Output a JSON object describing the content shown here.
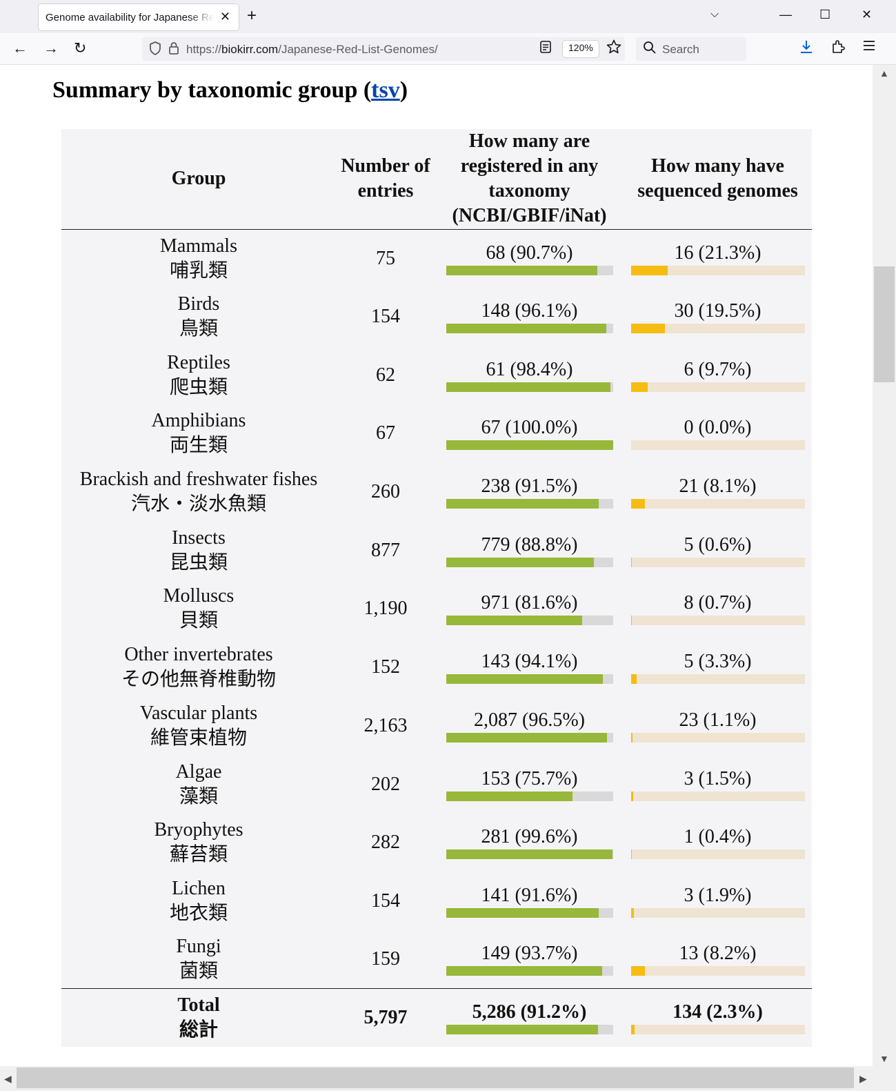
{
  "browser": {
    "tab_title": "Genome availability for Japanese Red List",
    "new_tab_glyph": "+",
    "tab_close_glyph": "✕",
    "tab_list_glyph": "⌵",
    "minimize_glyph": "—",
    "maximize_glyph": "☐",
    "close_glyph": "✕",
    "back_glyph": "←",
    "forward_glyph": "→",
    "reload_glyph": "↻",
    "url_scheme": "https://",
    "url_host": "biokirr.com",
    "url_path": "/Japanese-Red-List-Genomes/",
    "zoom": "120%",
    "search_placeholder": "Search",
    "icons": {
      "shield": "shield-icon",
      "lock": "lock-icon",
      "reader": "reader-view-icon",
      "star": "star-icon",
      "search": "search-icon",
      "download": "download-icon",
      "extensions": "extensions-icon",
      "menu": "hamburger-menu-icon"
    }
  },
  "page": {
    "heading_prefix": "Summary by taxonomic group (",
    "heading_link": "tsv",
    "heading_suffix": ")"
  },
  "table": {
    "headers": [
      "Group",
      "Number of entries",
      "How many are registered in any taxonomy (NCBI/GBIF/iNat)",
      "How many have sequenced genomes"
    ],
    "rows": [
      {
        "en": "Mammals",
        "ja": "哺乳類",
        "entries": "75",
        "registered": "68 (90.7%)",
        "registered_pct": 90.7,
        "sequenced": "16 (21.3%)",
        "sequenced_pct": 21.3
      },
      {
        "en": "Birds",
        "ja": "鳥類",
        "entries": "154",
        "registered": "148 (96.1%)",
        "registered_pct": 96.1,
        "sequenced": "30 (19.5%)",
        "sequenced_pct": 19.5
      },
      {
        "en": "Reptiles",
        "ja": "爬虫類",
        "entries": "62",
        "registered": "61 (98.4%)",
        "registered_pct": 98.4,
        "sequenced": "6 (9.7%)",
        "sequenced_pct": 9.7
      },
      {
        "en": "Amphibians",
        "ja": "両生類",
        "entries": "67",
        "registered": "67 (100.0%)",
        "registered_pct": 100.0,
        "sequenced": "0 (0.0%)",
        "sequenced_pct": 0.0
      },
      {
        "en": "Brackish and freshwater fishes",
        "ja": "汽水・淡水魚類",
        "entries": "260",
        "registered": "238 (91.5%)",
        "registered_pct": 91.5,
        "sequenced": "21 (8.1%)",
        "sequenced_pct": 8.1
      },
      {
        "en": "Insects",
        "ja": "昆虫類",
        "entries": "877",
        "registered": "779 (88.8%)",
        "registered_pct": 88.8,
        "sequenced": "5 (0.6%)",
        "sequenced_pct": 0.6
      },
      {
        "en": "Molluscs",
        "ja": "貝類",
        "entries": "1,190",
        "registered": "971 (81.6%)",
        "registered_pct": 81.6,
        "sequenced": "8 (0.7%)",
        "sequenced_pct": 0.7
      },
      {
        "en": "Other invertebrates",
        "ja": "その他無脊椎動物",
        "entries": "152",
        "registered": "143 (94.1%)",
        "registered_pct": 94.1,
        "sequenced": "5 (3.3%)",
        "sequenced_pct": 3.3
      },
      {
        "en": "Vascular plants",
        "ja": "維管束植物",
        "entries": "2,163",
        "registered": "2,087 (96.5%)",
        "registered_pct": 96.5,
        "sequenced": "23 (1.1%)",
        "sequenced_pct": 1.1
      },
      {
        "en": "Algae",
        "ja": "藻類",
        "entries": "202",
        "registered": "153 (75.7%)",
        "registered_pct": 75.7,
        "sequenced": "3 (1.5%)",
        "sequenced_pct": 1.5
      },
      {
        "en": "Bryophytes",
        "ja": "蘚苔類",
        "entries": "282",
        "registered": "281 (99.6%)",
        "registered_pct": 99.6,
        "sequenced": "1 (0.4%)",
        "sequenced_pct": 0.4
      },
      {
        "en": "Lichen",
        "ja": "地衣類",
        "entries": "154",
        "registered": "141 (91.6%)",
        "registered_pct": 91.6,
        "sequenced": "3 (1.9%)",
        "sequenced_pct": 1.9
      },
      {
        "en": "Fungi",
        "ja": "菌類",
        "entries": "159",
        "registered": "149 (93.7%)",
        "registered_pct": 93.7,
        "sequenced": "13 (8.2%)",
        "sequenced_pct": 8.2
      }
    ],
    "total": {
      "en": "Total",
      "ja": "総計",
      "entries": "5,797",
      "registered": "5,286 (91.2%)",
      "registered_pct": 91.2,
      "sequenced": "134 (2.3%)",
      "sequenced_pct": 2.3
    }
  },
  "colors": {
    "registered_bar": "#97b83a",
    "registered_track": "#d9d9d9",
    "sequenced_bar": "#f5bc12",
    "sequenced_track": "#efe3d2",
    "table_background": "#f4f4f6",
    "link": "#0645ad"
  }
}
